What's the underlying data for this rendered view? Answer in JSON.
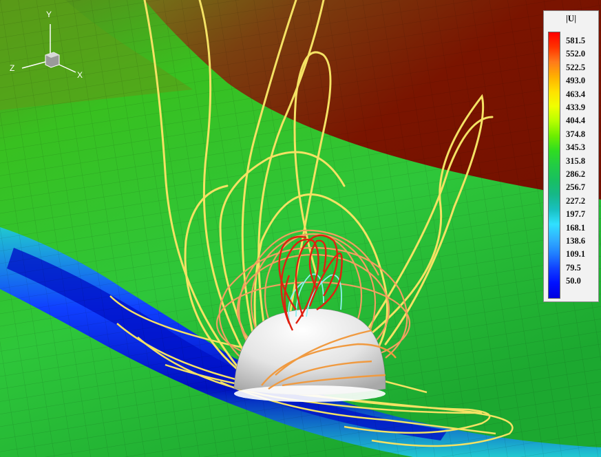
{
  "legend": {
    "title": "|U|",
    "levels": [
      "581.5",
      "552.0",
      "522.5",
      "493.0",
      "463.4",
      "433.9",
      "404.4",
      "374.8",
      "345.3",
      "315.8",
      "286.2",
      "256.7",
      "227.2",
      "197.7",
      "168.1",
      "138.6",
      "109.1",
      "79.5",
      "50.0"
    ],
    "colors": [
      "#ff0000",
      "#ff3300",
      "#ff7a1a",
      "#ffb000",
      "#ffe000",
      "#f0ff00",
      "#b8ff00",
      "#6eee00",
      "#30dd20",
      "#22cc44",
      "#18c060",
      "#16b888",
      "#18c0c0",
      "#30e0ff",
      "#30b0ff",
      "#2080ff",
      "#1040ff",
      "#0010ff",
      "#0000e0"
    ]
  },
  "axes": {
    "y": "Y",
    "z": "Z",
    "x": "X"
  },
  "colors": {
    "background_high": "#7a1000",
    "plane_mid": "#3ec020",
    "wake_low": "#0820d0",
    "field_line": "#f5e060",
    "field_line_inner": "#ff4400",
    "sphere": "#e8e8e8"
  }
}
